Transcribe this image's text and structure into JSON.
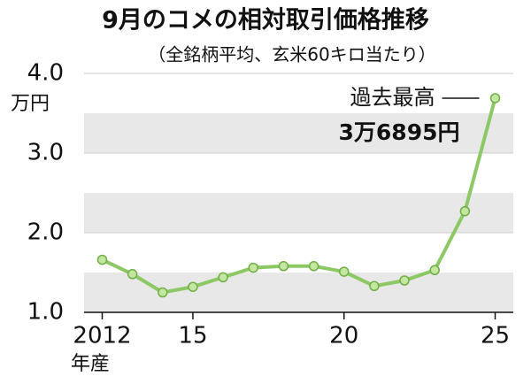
{
  "chart_data": {
    "type": "line",
    "title": "9月のコメの相対取引価格推移",
    "subtitle": "（全銘柄平均、玄米60キロ当たり）",
    "y_unit": "万円",
    "x_label": "年産",
    "annotation": "過去最高",
    "x": [
      2012,
      2013,
      2014,
      2015,
      2016,
      2017,
      2018,
      2019,
      2020,
      2021,
      2022,
      2023,
      2024,
      2025
    ],
    "series": [
      {
        "name": "相対取引価格",
        "color": "#8cc864",
        "values": [
          1.66,
          1.48,
          1.25,
          1.32,
          1.44,
          1.56,
          1.58,
          1.58,
          1.51,
          1.33,
          1.4,
          1.53,
          2.27,
          3.6895
        ],
        "value_labels": [
          null,
          null,
          null,
          null,
          null,
          null,
          null,
          null,
          null,
          null,
          null,
          null,
          null,
          "3万6895円"
        ]
      }
    ],
    "xlim": [
      2011.4,
      2025.6
    ],
    "xticks": [
      2012,
      {
        "value": 2015,
        "label": "15"
      },
      {
        "value": 2020,
        "label": "20"
      },
      {
        "value": 2025,
        "label": "25"
      }
    ],
    "ylim": [
      1,
      4
    ],
    "yticks": [
      {
        "value": 1,
        "label": "1.0"
      },
      {
        "value": 2,
        "label": "2.0"
      },
      {
        "value": 3,
        "label": "3.0"
      },
      {
        "value": 4,
        "label": "4.0"
      }
    ],
    "grid": true
  }
}
